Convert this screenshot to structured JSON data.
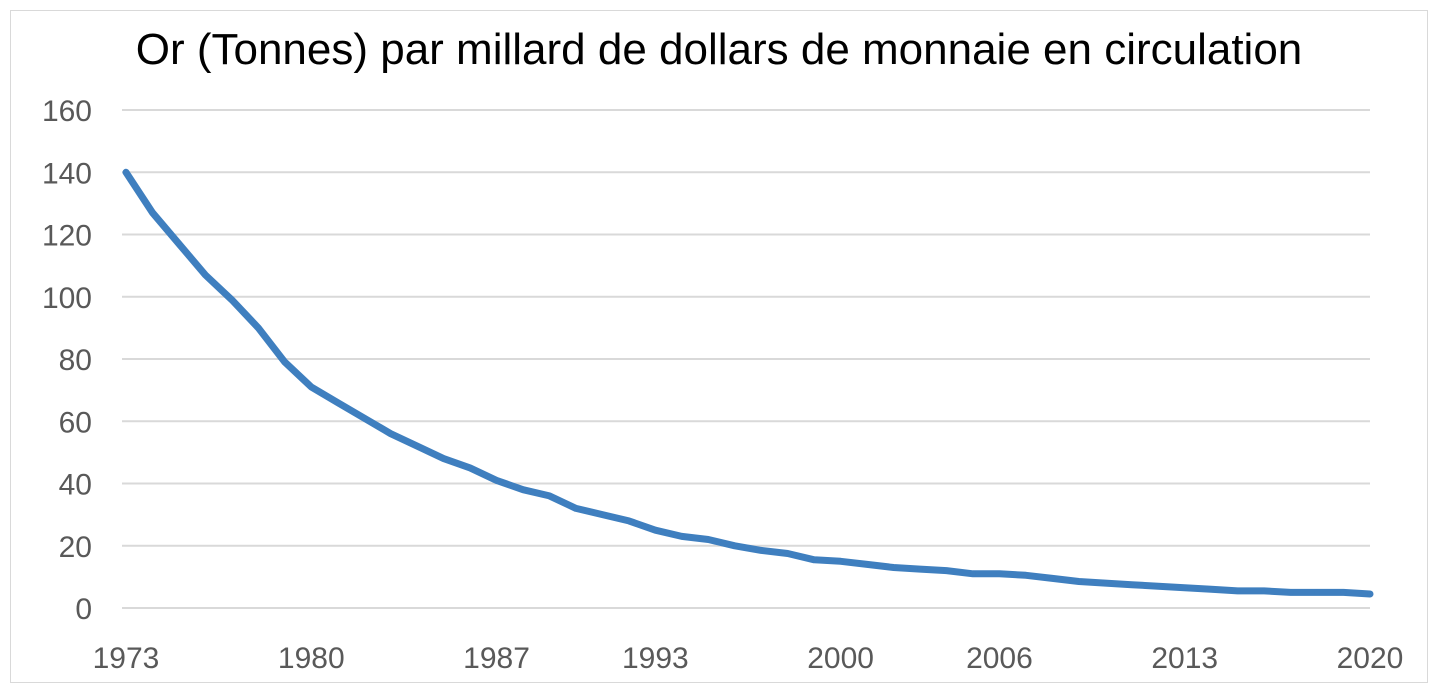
{
  "chart_data": {
    "type": "line",
    "title": "Or (Tonnes) par millard de dollars de monnaie en circulation",
    "xlabel": "",
    "ylabel": "",
    "ylim": [
      0,
      160
    ],
    "yticks": [
      "0",
      "20",
      "40",
      "60",
      "80",
      "100",
      "120",
      "140",
      "160"
    ],
    "xtick_labels": [
      "1973",
      "1980",
      "1987",
      "1993",
      "2000",
      "2006",
      "2013",
      "2020"
    ],
    "grid": true,
    "legend": "none",
    "series": [
      {
        "color": "#3f7fbf",
        "x": [
          1973,
          1974,
          1975,
          1976,
          1977,
          1978,
          1979,
          1980,
          1981,
          1982,
          1983,
          1984,
          1985,
          1986,
          1987,
          1988,
          1989,
          1990,
          1991,
          1992,
          1993,
          1994,
          1995,
          1996,
          1997,
          1998,
          1999,
          2000,
          2001,
          2002,
          2003,
          2004,
          2005,
          2006,
          2007,
          2008,
          2009,
          2010,
          2011,
          2012,
          2013,
          2014,
          2015,
          2016,
          2017,
          2018,
          2019,
          2020
        ],
        "values": [
          140,
          127,
          117,
          107,
          99,
          90,
          79,
          71,
          66,
          61,
          56,
          52,
          48,
          45,
          41,
          38,
          36,
          32,
          30,
          28,
          25,
          23,
          22,
          20,
          18.5,
          17.5,
          15.5,
          15,
          14,
          13,
          12.5,
          12,
          11,
          11,
          10.5,
          9.5,
          8.5,
          8,
          7.5,
          7,
          6.5,
          6,
          5.5,
          5.5,
          5,
          5,
          5,
          4.5
        ]
      }
    ]
  }
}
